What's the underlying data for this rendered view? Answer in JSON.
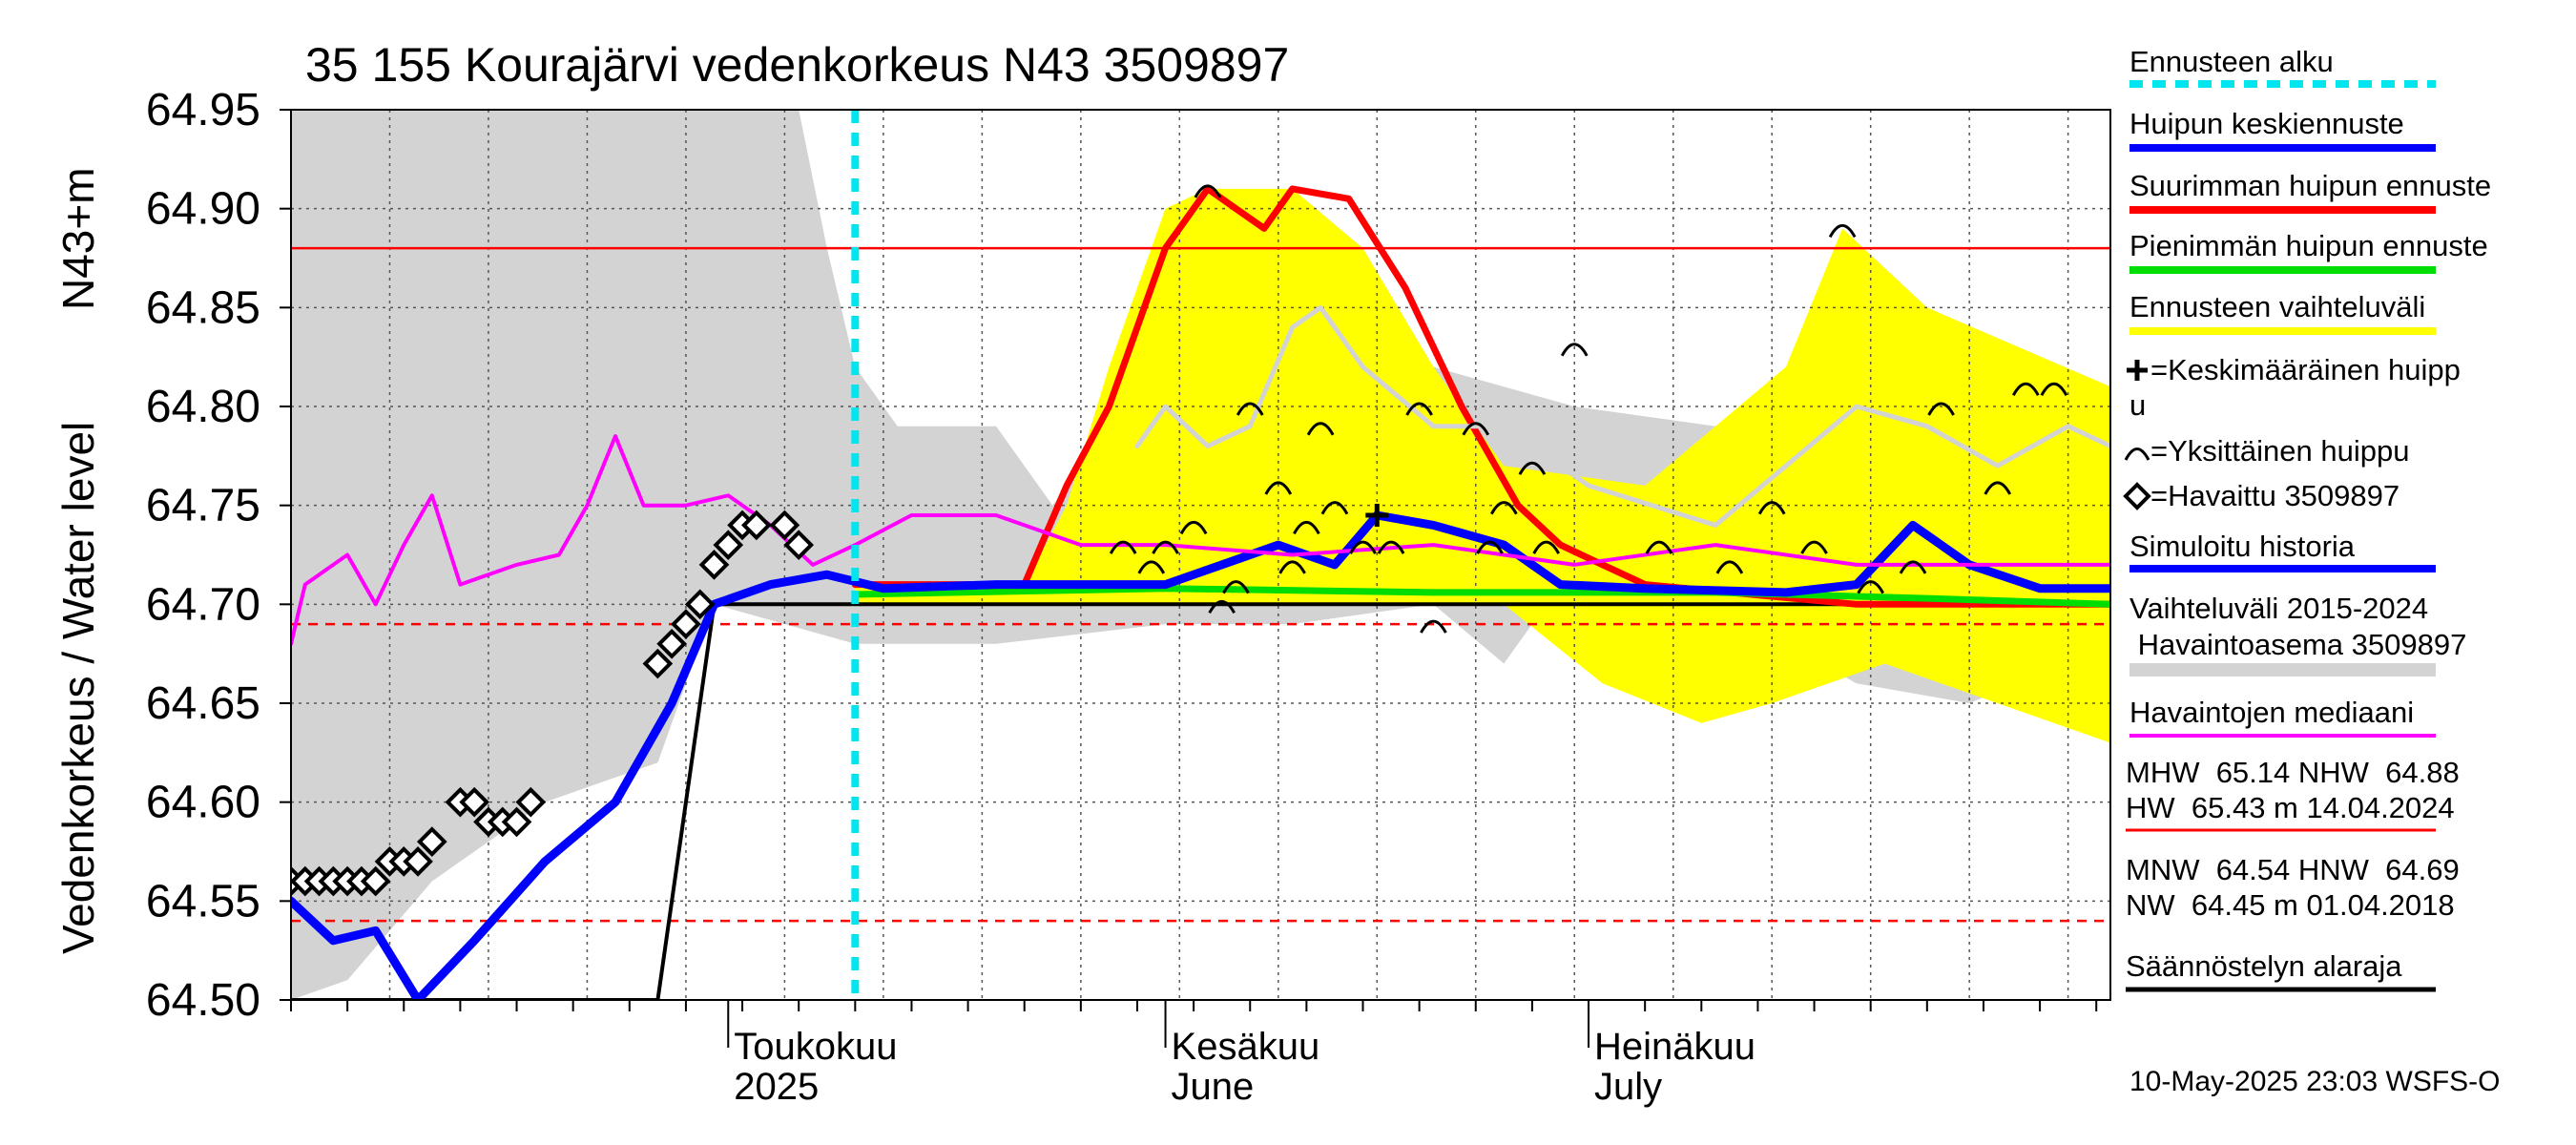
{
  "chart_data": {
    "type": "line",
    "title": "35 155 Kourajärvi vedenkorkeus N43 3509897",
    "ylabel_left": "Vedenkorkeus / Water level",
    "ylabel_unit": "N43+m",
    "ylim": [
      64.5,
      64.95
    ],
    "y_ticks": [
      "64.95",
      "64.90",
      "64.85",
      "64.80",
      "64.75",
      "64.70",
      "64.65",
      "64.60",
      "64.55",
      "64.50"
    ],
    "x_start": "2025-03-31",
    "x_end": "2025-08-07",
    "month_labels": [
      {
        "date": "2025-05-01",
        "line1": "Toukokuu",
        "line2": "2025"
      },
      {
        "date": "2025-06-01",
        "line1": "Kesäkuu",
        "line2": "June"
      },
      {
        "date": "2025-07-01",
        "line1": "Heinäkuu",
        "line2": "July"
      }
    ],
    "forecast_start": "2025-05-10",
    "grid": true,
    "legend_position": "right",
    "legend": [
      {
        "label": "Ennusteen alku",
        "color": "#00e5ee",
        "style": "dashed"
      },
      {
        "label": "Huipun keskiennuste",
        "color": "#0000ff",
        "style": "line"
      },
      {
        "label": "Suurimman huipun ennuste",
        "color": "#ff0000",
        "style": "line"
      },
      {
        "label": "Pienimmän huipun ennuste",
        "color": "#00dd00",
        "style": "line"
      },
      {
        "label": "Ennusteen vaihteluväli",
        "color": "#ffff00",
        "style": "line"
      },
      {
        "label": "=Keskimääräinen huipp",
        "label2": "u",
        "color": "#000000",
        "style": "plus"
      },
      {
        "label": "=Yksittäinen huippu",
        "color": "#000000",
        "style": "arc"
      },
      {
        "label": "=Havaittu 3509897",
        "color": "#000000",
        "style": "diamond"
      },
      {
        "label": "Simuloitu historia",
        "color": "#0000ff",
        "style": "line"
      },
      {
        "label": "Vaihteluväli 2015-2024",
        "label2": " Havaintoasema 3509897",
        "color": "#d3d3d3",
        "style": "band"
      },
      {
        "label": "Havaintojen mediaani",
        "color": "#ff00ff",
        "style": "line"
      }
    ],
    "stats": {
      "line1": "MHW  65.14 NHW  64.88",
      "line2": "HW  65.43 m 14.04.2024",
      "line3": "MNW  64.54 HNW  64.69",
      "line4": "NW  64.45 m 01.04.2018",
      "line5": "Säännöstelyn alaraja"
    },
    "hlines": [
      {
        "y": 64.88,
        "color": "#ff0000",
        "style": "solid"
      },
      {
        "y": 64.69,
        "color": "#ff0000",
        "style": "dashed"
      },
      {
        "y": 64.54,
        "color": "#ff0000",
        "style": "dashed"
      }
    ],
    "footer": "10-May-2025 23:03 WSFS-O",
    "regulation_lower_limit": {
      "color": "#000000",
      "points": [
        [
          "2025-03-31",
          64.5
        ],
        [
          "2025-04-26",
          64.5
        ],
        [
          "2025-04-30",
          64.7
        ],
        [
          "2025-08-07",
          64.7
        ]
      ]
    },
    "history_band": {
      "color": "#d3d3d3",
      "upper": [
        [
          "2025-03-31",
          64.95
        ],
        [
          "2025-05-06",
          64.95
        ],
        [
          "2025-05-08",
          64.88
        ],
        [
          "2025-05-10",
          64.82
        ],
        [
          "2025-05-13",
          64.79
        ],
        [
          "2025-05-20",
          64.79
        ],
        [
          "2025-05-24",
          64.75
        ],
        [
          "2025-05-27",
          64.78
        ],
        [
          "2025-05-30",
          64.83
        ],
        [
          "2025-06-10",
          64.83
        ],
        [
          "2025-06-20",
          64.82
        ],
        [
          "2025-06-30",
          64.8
        ],
        [
          "2025-07-10",
          64.79
        ],
        [
          "2025-07-20",
          64.79
        ],
        [
          "2025-07-30",
          64.8
        ],
        [
          "2025-08-07",
          64.8
        ]
      ],
      "lower": [
        [
          "2025-03-31",
          64.5
        ],
        [
          "2025-04-04",
          64.51
        ],
        [
          "2025-04-10",
          64.56
        ],
        [
          "2025-04-18",
          64.6
        ],
        [
          "2025-04-26",
          64.62
        ],
        [
          "2025-04-30",
          64.7
        ],
        [
          "2025-05-10",
          64.68
        ],
        [
          "2025-05-20",
          64.68
        ],
        [
          "2025-06-01",
          64.69
        ],
        [
          "2025-06-10",
          64.69
        ],
        [
          "2025-06-20",
          64.7
        ],
        [
          "2025-06-25",
          64.67
        ],
        [
          "2025-06-28",
          64.7
        ],
        [
          "2025-07-10",
          64.7
        ],
        [
          "2025-07-20",
          64.66
        ],
        [
          "2025-07-28",
          64.65
        ],
        [
          "2025-08-07",
          64.68
        ]
      ]
    },
    "forecast_band": {
      "color": "#ffff00",
      "upper": [
        [
          "2025-05-10",
          64.71
        ],
        [
          "2025-05-22",
          64.71
        ],
        [
          "2025-05-25",
          64.75
        ],
        [
          "2025-05-28",
          64.82
        ],
        [
          "2025-06-01",
          64.9
        ],
        [
          "2025-06-04",
          64.91
        ],
        [
          "2025-06-10",
          64.91
        ],
        [
          "2025-06-15",
          64.88
        ],
        [
          "2025-06-20",
          64.82
        ],
        [
          "2025-06-25",
          64.77
        ],
        [
          "2025-07-05",
          64.76
        ],
        [
          "2025-07-15",
          64.82
        ],
        [
          "2025-07-19",
          64.89
        ],
        [
          "2025-07-25",
          64.85
        ],
        [
          "2025-08-07",
          64.81
        ]
      ],
      "lower": [
        [
          "2025-05-10",
          64.7
        ],
        [
          "2025-06-25",
          64.7
        ],
        [
          "2025-07-02",
          64.66
        ],
        [
          "2025-07-09",
          64.64
        ],
        [
          "2025-07-14",
          64.65
        ],
        [
          "2025-07-22",
          64.67
        ],
        [
          "2025-07-30",
          64.65
        ],
        [
          "2025-08-07",
          64.63
        ]
      ]
    },
    "series": [
      {
        "name": "Suurimman huipun ennuste",
        "color": "#ff0000",
        "width": 7,
        "points": [
          [
            "2025-05-10",
            64.71
          ],
          [
            "2025-05-22",
            64.71
          ],
          [
            "2025-05-25",
            64.76
          ],
          [
            "2025-05-28",
            64.8
          ],
          [
            "2025-06-01",
            64.88
          ],
          [
            "2025-06-04",
            64.91
          ],
          [
            "2025-06-06",
            64.9
          ],
          [
            "2025-06-08",
            64.89
          ],
          [
            "2025-06-10",
            64.91
          ],
          [
            "2025-06-14",
            64.905
          ],
          [
            "2025-06-18",
            64.86
          ],
          [
            "2025-06-22",
            64.8
          ],
          [
            "2025-06-26",
            64.75
          ],
          [
            "2025-06-29",
            64.73
          ],
          [
            "2025-07-02",
            64.72
          ],
          [
            "2025-07-05",
            64.71
          ],
          [
            "2025-07-20",
            64.7
          ],
          [
            "2025-08-07",
            64.7
          ]
        ]
      },
      {
        "name": "Pienimmän huipun ennuste",
        "color": "#00dd00",
        "width": 7,
        "points": [
          [
            "2025-05-10",
            64.705
          ],
          [
            "2025-06-01",
            64.708
          ],
          [
            "2025-06-20",
            64.706
          ],
          [
            "2025-07-10",
            64.706
          ],
          [
            "2025-07-25",
            64.703
          ],
          [
            "2025-08-07",
            64.7
          ]
        ]
      },
      {
        "name": "Huipun keskiennuste",
        "color": "#0000ff",
        "width": 9,
        "points": [
          [
            "2025-03-31",
            64.55
          ],
          [
            "2025-04-03",
            64.53
          ],
          [
            "2025-04-06",
            64.535
          ],
          [
            "2025-04-09",
            64.5
          ],
          [
            "2025-04-13",
            64.53
          ],
          [
            "2025-04-18",
            64.57
          ],
          [
            "2025-04-23",
            64.6
          ],
          [
            "2025-04-27",
            64.65
          ],
          [
            "2025-04-30",
            64.7
          ],
          [
            "2025-05-04",
            64.71
          ],
          [
            "2025-05-08",
            64.715
          ],
          [
            "2025-05-12",
            64.708
          ],
          [
            "2025-05-20",
            64.71
          ],
          [
            "2025-06-01",
            64.71
          ],
          [
            "2025-06-05",
            64.72
          ],
          [
            "2025-06-09",
            64.73
          ],
          [
            "2025-06-13",
            64.72
          ],
          [
            "2025-06-16",
            64.745
          ],
          [
            "2025-06-20",
            64.74
          ],
          [
            "2025-06-25",
            64.73
          ],
          [
            "2025-06-29",
            64.71
          ],
          [
            "2025-07-05",
            64.708
          ],
          [
            "2025-07-15",
            64.706
          ],
          [
            "2025-07-20",
            64.71
          ],
          [
            "2025-07-24",
            64.74
          ],
          [
            "2025-07-28",
            64.72
          ],
          [
            "2025-08-02",
            64.708
          ],
          [
            "2025-08-07",
            64.708
          ]
        ]
      },
      {
        "name": "Havaintojen mediaani",
        "color": "#ff00ff",
        "width": 4,
        "points": [
          [
            "2025-03-31",
            64.68
          ],
          [
            "2025-04-01",
            64.71
          ],
          [
            "2025-04-04",
            64.725
          ],
          [
            "2025-04-06",
            64.7
          ],
          [
            "2025-04-08",
            64.73
          ],
          [
            "2025-04-10",
            64.755
          ],
          [
            "2025-04-12",
            64.71
          ],
          [
            "2025-04-16",
            64.72
          ],
          [
            "2025-04-19",
            64.725
          ],
          [
            "2025-04-21",
            64.75
          ],
          [
            "2025-04-23",
            64.785
          ],
          [
            "2025-04-25",
            64.75
          ],
          [
            "2025-04-28",
            64.75
          ],
          [
            "2025-05-01",
            64.755
          ],
          [
            "2025-05-04",
            64.74
          ],
          [
            "2025-05-07",
            64.72
          ],
          [
            "2025-05-10",
            64.73
          ],
          [
            "2025-05-14",
            64.745
          ],
          [
            "2025-05-20",
            64.745
          ],
          [
            "2025-05-26",
            64.73
          ],
          [
            "2025-06-01",
            64.73
          ],
          [
            "2025-06-10",
            64.725
          ],
          [
            "2025-06-20",
            64.73
          ],
          [
            "2025-06-30",
            64.72
          ],
          [
            "2025-07-10",
            64.73
          ],
          [
            "2025-07-20",
            64.72
          ],
          [
            "2025-07-30",
            64.72
          ],
          [
            "2025-08-07",
            64.72
          ]
        ]
      },
      {
        "name": "Simuloitu historia",
        "color": "#d3d3d3",
        "width": 5,
        "points": [
          [
            "2025-05-30",
            64.78
          ],
          [
            "2025-06-01",
            64.8
          ],
          [
            "2025-06-04",
            64.78
          ],
          [
            "2025-06-07",
            64.79
          ],
          [
            "2025-06-10",
            64.84
          ],
          [
            "2025-06-12",
            64.85
          ],
          [
            "2025-06-15",
            64.82
          ],
          [
            "2025-06-20",
            64.79
          ],
          [
            "2025-06-25",
            64.79
          ],
          [
            "2025-07-01",
            64.76
          ],
          [
            "2025-07-10",
            64.74
          ],
          [
            "2025-07-15",
            64.77
          ],
          [
            "2025-07-20",
            64.8
          ],
          [
            "2025-07-25",
            64.79
          ],
          [
            "2025-07-30",
            64.77
          ],
          [
            "2025-08-04",
            64.79
          ],
          [
            "2025-08-07",
            64.78
          ]
        ]
      }
    ],
    "observed": {
      "name": "Havaittu 3509897",
      "color": "#000000",
      "points": [
        [
          "2025-03-31",
          64.56
        ],
        [
          "2025-04-01",
          64.56
        ],
        [
          "2025-04-02",
          64.56
        ],
        [
          "2025-04-03",
          64.56
        ],
        [
          "2025-04-04",
          64.56
        ],
        [
          "2025-04-05",
          64.56
        ],
        [
          "2025-04-06",
          64.56
        ],
        [
          "2025-04-07",
          64.57
        ],
        [
          "2025-04-08",
          64.57
        ],
        [
          "2025-04-09",
          64.57
        ],
        [
          "2025-04-10",
          64.58
        ],
        [
          "2025-04-12",
          64.6
        ],
        [
          "2025-04-13",
          64.6
        ],
        [
          "2025-04-14",
          64.59
        ],
        [
          "2025-04-15",
          64.59
        ],
        [
          "2025-04-16",
          64.59
        ],
        [
          "2025-04-17",
          64.6
        ],
        [
          "2025-04-26",
          64.67
        ],
        [
          "2025-04-27",
          64.68
        ],
        [
          "2025-04-28",
          64.69
        ],
        [
          "2025-04-29",
          64.7
        ],
        [
          "2025-04-30",
          64.72
        ],
        [
          "2025-05-01",
          64.73
        ],
        [
          "2025-05-02",
          64.74
        ],
        [
          "2025-05-03",
          64.74
        ],
        [
          "2025-05-05",
          64.74
        ],
        [
          "2025-05-06",
          64.73
        ]
      ]
    },
    "mean_peak": {
      "date": "2025-06-16",
      "value": 64.745
    },
    "single_peaks": [
      [
        "2025-05-29",
        64.73
      ],
      [
        "2025-05-31",
        64.72
      ],
      [
        "2025-06-01",
        64.73
      ],
      [
        "2025-06-03",
        64.74
      ],
      [
        "2025-06-04",
        64.91
      ],
      [
        "2025-06-05",
        64.7
      ],
      [
        "2025-06-06",
        64.71
      ],
      [
        "2025-06-07",
        64.8
      ],
      [
        "2025-06-09",
        64.76
      ],
      [
        "2025-06-10",
        64.72
      ],
      [
        "2025-06-11",
        64.74
      ],
      [
        "2025-06-12",
        64.79
      ],
      [
        "2025-06-13",
        64.75
      ],
      [
        "2025-06-15",
        64.73
      ],
      [
        "2025-06-17",
        64.73
      ],
      [
        "2025-06-19",
        64.8
      ],
      [
        "2025-06-20",
        64.69
      ],
      [
        "2025-06-23",
        64.79
      ],
      [
        "2025-06-24",
        64.73
      ],
      [
        "2025-06-25",
        64.75
      ],
      [
        "2025-06-27",
        64.77
      ],
      [
        "2025-06-28",
        64.73
      ],
      [
        "2025-06-30",
        64.83
      ],
      [
        "2025-07-06",
        64.73
      ],
      [
        "2025-07-11",
        64.72
      ],
      [
        "2025-07-14",
        64.75
      ],
      [
        "2025-07-17",
        64.73
      ],
      [
        "2025-07-19",
        64.89
      ],
      [
        "2025-07-21",
        64.71
      ],
      [
        "2025-07-24",
        64.72
      ],
      [
        "2025-07-26",
        64.8
      ],
      [
        "2025-07-30",
        64.76
      ],
      [
        "2025-08-01",
        64.81
      ],
      [
        "2025-08-03",
        64.81
      ]
    ]
  }
}
